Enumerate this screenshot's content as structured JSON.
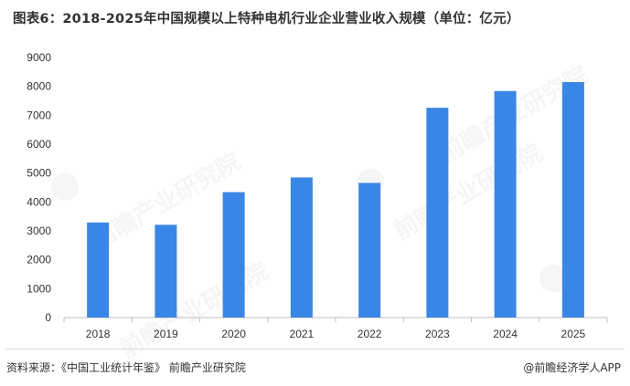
{
  "title": "图表6：2018-2025年中国规模以上特种电机行业企业营业收入规模（单位：亿元）",
  "footer": {
    "source": "资料来源：《中国工业统计年鉴》 前瞻产业研究院",
    "credit": "@前瞻经济学人APP"
  },
  "watermark": "前瞻产业研究院",
  "colors": {
    "bar": "#3a86e6",
    "axis": "#bfbfbf",
    "text": "#333333"
  },
  "chart_data": {
    "type": "bar",
    "title": "图表6：2018-2025年中国规模以上特种电机行业企业营业收入规模（单位：亿元）",
    "categories": [
      "2018",
      "2019",
      "2020",
      "2021",
      "2022",
      "2023",
      "2024",
      "2025"
    ],
    "values": [
      3290,
      3210,
      4340,
      4850,
      4660,
      7260,
      7840,
      8150
    ],
    "ylim": [
      0,
      9000
    ],
    "yticks": [
      0,
      1000,
      2000,
      3000,
      4000,
      5000,
      6000,
      7000,
      8000,
      9000
    ],
    "grid": false,
    "legend": "none"
  }
}
